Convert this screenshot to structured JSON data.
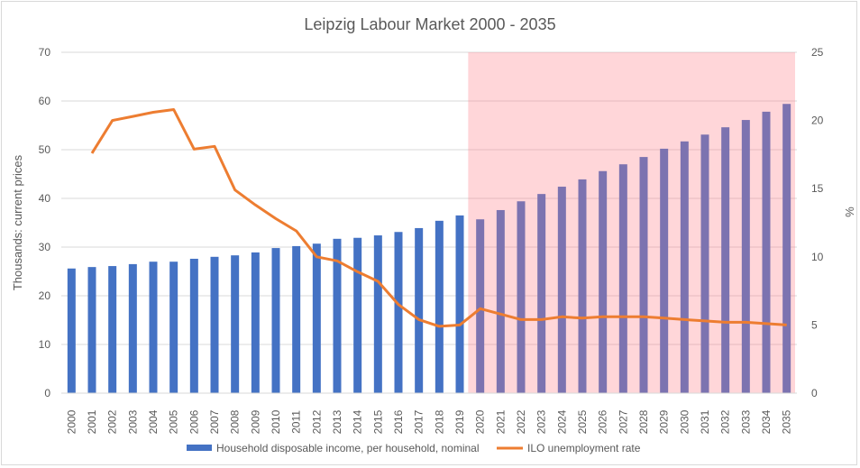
{
  "chart_data": {
    "type": "bar+line",
    "title": "Leipzig Labour Market 2000 - 2035",
    "ylabel": "Thousands: current prices",
    "y2label": "%",
    "ylim": [
      0,
      70
    ],
    "y2lim": [
      0,
      25
    ],
    "yticks": [
      "0",
      "10",
      "20",
      "30",
      "40",
      "50",
      "60",
      "70"
    ],
    "y2ticks": [
      "0",
      "5",
      "10",
      "15",
      "20",
      "25"
    ],
    "categories": [
      "2000",
      "2001",
      "2002",
      "2003",
      "2004",
      "2005",
      "2006",
      "2007",
      "2008",
      "2009",
      "2010",
      "2011",
      "2012",
      "2013",
      "2014",
      "2015",
      "2016",
      "2017",
      "2018",
      "2019",
      "2020",
      "2021",
      "2022",
      "2023",
      "2024",
      "2025",
      "2026",
      "2027",
      "2028",
      "2029",
      "2030",
      "2031",
      "2032",
      "2033",
      "2034",
      "2035"
    ],
    "forecast_start": "2020",
    "legend_position": "bottom",
    "series": [
      {
        "name": "Household disposable income, per household, nominal",
        "type": "bar",
        "axis": "left",
        "color": "#4472C4",
        "values": [
          25.6,
          25.9,
          26.1,
          26.5,
          27.0,
          27.0,
          27.6,
          28.0,
          28.3,
          28.9,
          29.8,
          30.2,
          30.7,
          31.7,
          31.9,
          32.4,
          33.1,
          33.9,
          35.4,
          36.5,
          35.7,
          37.6,
          39.4,
          40.9,
          42.4,
          43.9,
          45.6,
          47.0,
          48.5,
          50.2,
          51.7,
          53.1,
          54.6,
          56.1,
          57.8,
          59.4
        ]
      },
      {
        "name": "ILO unemployment rate",
        "type": "line",
        "axis": "right",
        "color": "#ED7D31",
        "values": [
          null,
          17.6,
          20.0,
          20.3,
          20.6,
          20.8,
          17.9,
          18.1,
          14.9,
          13.8,
          12.8,
          11.9,
          10.0,
          9.7,
          8.9,
          8.2,
          6.5,
          5.4,
          4.9,
          5.0,
          6.2,
          5.8,
          5.4,
          5.4,
          5.6,
          5.5,
          5.6,
          5.6,
          5.6,
          5.5,
          5.4,
          5.3,
          5.2,
          5.2,
          5.1,
          5.0
        ]
      }
    ],
    "shade_color": "#FFD6D9"
  }
}
